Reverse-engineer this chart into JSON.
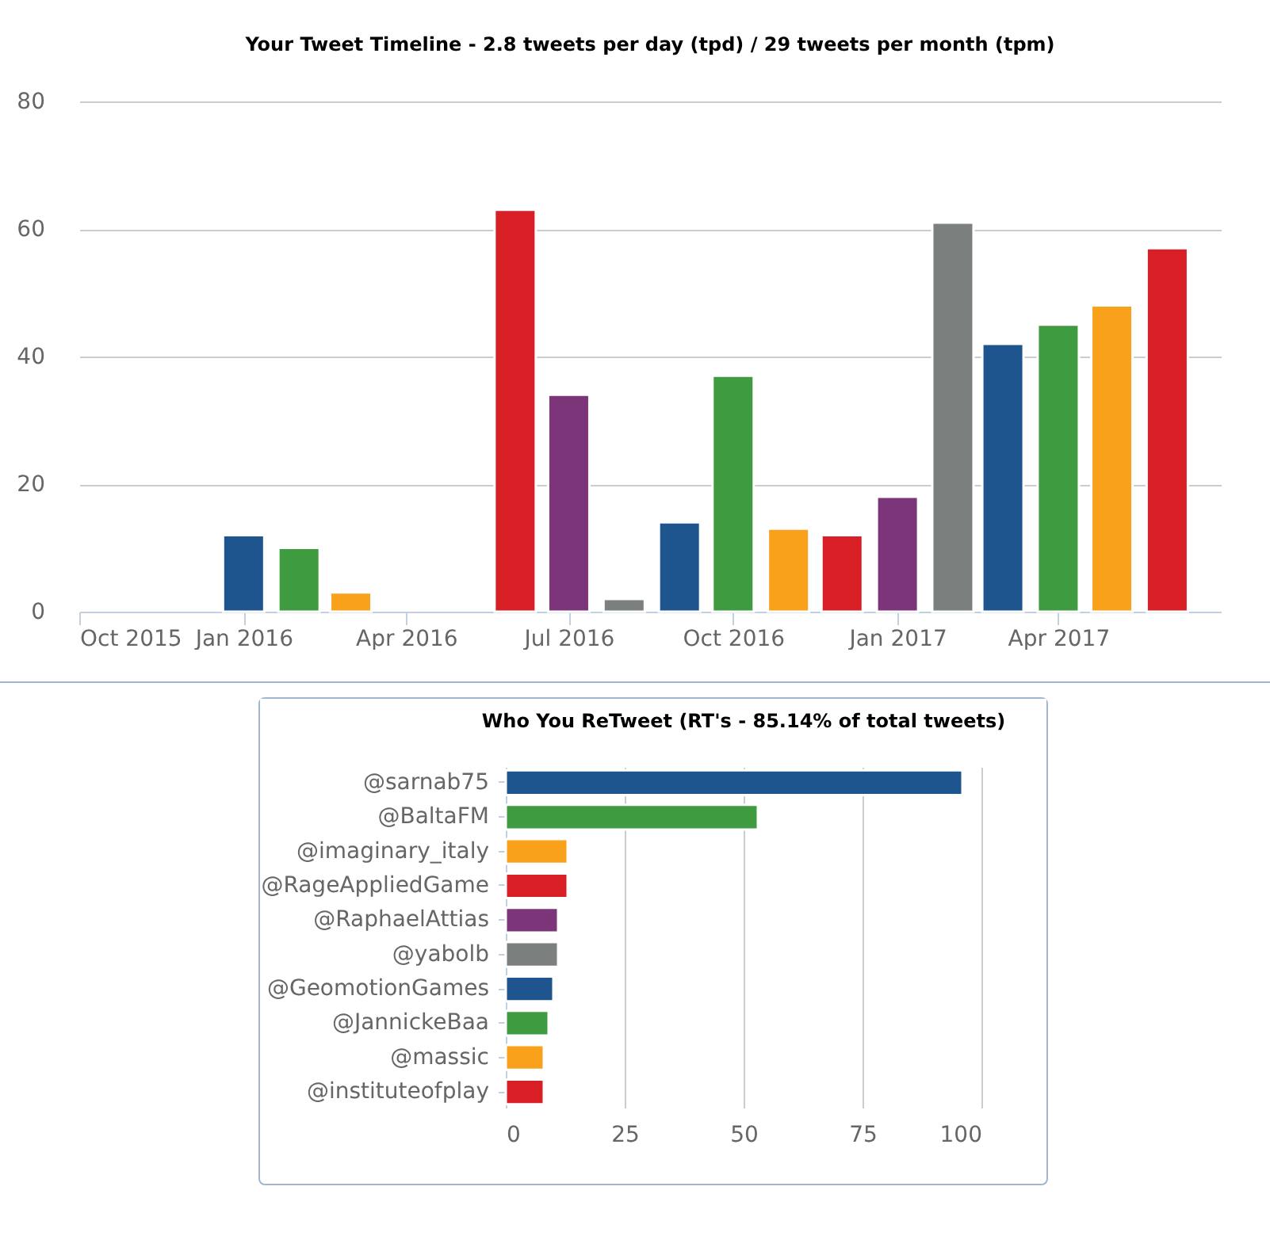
{
  "chart_data": [
    {
      "type": "bar",
      "title": "Your Tweet Timeline - 2.8 tweets per day (tpd) / 29 tweets per month (tpm)",
      "x": [
        "2016-01",
        "2016-02",
        "2016-03",
        "2016-06",
        "2016-07",
        "2016-08",
        "2016-09",
        "2016-10",
        "2016-11",
        "2016-12",
        "2017-01",
        "2017-02",
        "2017-03",
        "2017-04",
        "2017-05",
        "2017-06"
      ],
      "values": [
        12,
        10,
        3,
        63,
        34,
        2,
        14,
        37,
        13,
        12,
        18,
        61,
        42,
        45,
        48,
        57
      ],
      "colors": [
        "#1f558f",
        "#3f9b3f",
        "#f9a11b",
        "#d91f26",
        "#7d3579",
        "#7b7f7e",
        "#1f558f",
        "#3f9b3f",
        "#f9a11b",
        "#d91f26",
        "#7d3579",
        "#7b7f7e",
        "#1f558f",
        "#3f9b3f",
        "#f9a11b",
        "#d91f26"
      ],
      "xlim": [
        "2015-10",
        "2017-07"
      ],
      "xticks": [
        {
          "value": "2015-10",
          "label": "Oct 2015"
        },
        {
          "value": "2016-01",
          "label": "Jan 2016"
        },
        {
          "value": "2016-04",
          "label": "Apr 2016"
        },
        {
          "value": "2016-07",
          "label": "Jul 2016"
        },
        {
          "value": "2016-10",
          "label": "Oct 2016"
        },
        {
          "value": "2017-01",
          "label": "Jan 2017"
        },
        {
          "value": "2017-04",
          "label": "Apr 2017"
        }
      ],
      "ylim": [
        0,
        80
      ],
      "yticks": [
        0,
        20,
        40,
        60,
        80
      ],
      "grid": "y"
    },
    {
      "type": "bar",
      "orientation": "horizontal",
      "title": "Who You ReTweet (RT's - 85.14% of total tweets)",
      "categories": [
        "@sarnab75",
        "@BaltaFM",
        "@imaginary_italy",
        "@RageAppliedGame",
        "@RaphaelAttias",
        "@yabolb",
        "@GeomotionGames",
        "@JannickeBaa",
        "@massic",
        "@instituteofplay"
      ],
      "values": [
        96,
        53,
        13,
        13,
        11,
        11,
        10,
        9,
        8,
        8
      ],
      "colors": [
        "#1f558f",
        "#3f9b3f",
        "#f9a11b",
        "#d91f26",
        "#7d3579",
        "#7b7f7e",
        "#1f558f",
        "#3f9b3f",
        "#f9a11b",
        "#d91f26"
      ],
      "xlim": [
        0,
        100
      ],
      "xticks": [
        0,
        25,
        50,
        75,
        100
      ],
      "grid": "x"
    }
  ]
}
